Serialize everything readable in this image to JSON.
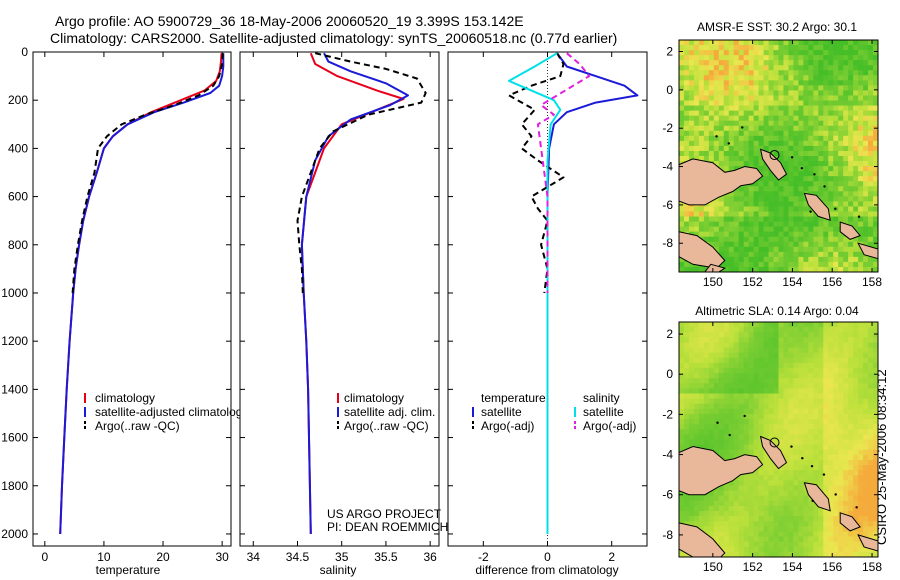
{
  "header": {
    "title_line1": "Argo profile: AO 5900729_36 18-May-2006 20060520_19 3.399S 153.142E",
    "title_line2": "Climatology: CARS2000. Satellite-adjusted climatology: synTS_20060518.nc (0.77d earlier)"
  },
  "side_credit": "CSIRO 25-May-2006 08:34:12",
  "project_note": {
    "line1": "US ARGO PROJECT",
    "line2": "PI: DEAN ROEMMICH"
  },
  "colors": {
    "climatology": "#e8001a",
    "satellite": "#1a1ad8",
    "argo": "#000000",
    "sal_satellite": "#00e0e8",
    "sal_argo": "#e020e0",
    "land": "#e9b89a"
  },
  "chart_data": [
    {
      "id": "temperature",
      "type": "line",
      "xlabel": "temperature",
      "ylabel": "depth",
      "xlim": [
        -2,
        31.5
      ],
      "ylim": [
        2050,
        0
      ],
      "xticks": [
        0,
        10,
        20,
        30
      ],
      "yticks": [
        0,
        200,
        400,
        600,
        800,
        1000,
        1200,
        1400,
        1600,
        1800,
        2000
      ],
      "legend": [
        "climatology",
        "satellite-adjusted climatology",
        "Argo(..raw -QC)"
      ],
      "series": [
        {
          "name": "climatology",
          "color": "climatology",
          "dash": false,
          "points": [
            [
              29.9,
              5
            ],
            [
              29.8,
              40
            ],
            [
              29.6,
              80
            ],
            [
              29.0,
              120
            ],
            [
              27.0,
              160
            ],
            [
              23.0,
              200
            ],
            [
              18.0,
              250
            ],
            [
              14.0,
              300
            ],
            [
              11.5,
              350
            ],
            [
              10.0,
              400
            ],
            [
              8.8,
              500
            ],
            [
              7.5,
              600
            ],
            [
              6.5,
              700
            ],
            [
              5.8,
              800
            ],
            [
              5.2,
              900
            ],
            [
              4.8,
              1000
            ],
            [
              4.2,
              1200
            ],
            [
              3.7,
              1400
            ],
            [
              3.3,
              1600
            ],
            [
              2.9,
              1800
            ],
            [
              2.6,
              2000
            ]
          ]
        },
        {
          "name": "satellite-adjusted climatology",
          "color": "satellite",
          "dash": false,
          "points": [
            [
              30.2,
              5
            ],
            [
              30.2,
              60
            ],
            [
              30.0,
              100
            ],
            [
              29.5,
              140
            ],
            [
              28.0,
              170
            ],
            [
              23.5,
              210
            ],
            [
              18.5,
              250
            ],
            [
              14.0,
              300
            ],
            [
              11.5,
              350
            ],
            [
              10.0,
              400
            ],
            [
              8.8,
              500
            ],
            [
              7.5,
              600
            ],
            [
              6.5,
              700
            ],
            [
              5.8,
              800
            ],
            [
              5.2,
              900
            ],
            [
              4.8,
              1000
            ],
            [
              4.2,
              1200
            ],
            [
              3.7,
              1400
            ],
            [
              3.3,
              1600
            ],
            [
              2.9,
              1800
            ],
            [
              2.6,
              2000
            ]
          ]
        },
        {
          "name": "Argo(..raw -QC)",
          "color": "argo",
          "dash": true,
          "points": [
            [
              30.1,
              5
            ],
            [
              30.0,
              50
            ],
            [
              29.5,
              100
            ],
            [
              28.5,
              140
            ],
            [
              26.0,
              180
            ],
            [
              22.0,
              220
            ],
            [
              17.0,
              260
            ],
            [
              13.0,
              300
            ],
            [
              10.5,
              350
            ],
            [
              9.0,
              400
            ],
            [
              8.4,
              500
            ],
            [
              7.2,
              600
            ],
            [
              6.3,
              700
            ],
            [
              5.6,
              800
            ],
            [
              5.0,
              900
            ],
            [
              4.7,
              1000
            ]
          ]
        }
      ]
    },
    {
      "id": "salinity",
      "type": "line",
      "xlabel": "salinity",
      "ylabel": "",
      "xlim": [
        33.85,
        36.1
      ],
      "ylim": [
        2050,
        0
      ],
      "xticks": [
        34,
        34.5,
        35,
        35.5,
        36
      ],
      "legend": [
        "climatology",
        "satellite adj. clim.",
        "Argo(..raw -QC)"
      ],
      "series": [
        {
          "name": "climatology",
          "color": "climatology",
          "dash": false,
          "points": [
            [
              34.65,
              5
            ],
            [
              34.7,
              50
            ],
            [
              34.95,
              100
            ],
            [
              35.4,
              160
            ],
            [
              35.7,
              195
            ],
            [
              35.4,
              240
            ],
            [
              35.0,
              300
            ],
            [
              34.8,
              400
            ],
            [
              34.7,
              500
            ],
            [
              34.6,
              600
            ],
            [
              34.55,
              800
            ],
            [
              34.57,
              1000
            ],
            [
              34.6,
              1200
            ],
            [
              34.62,
              1400
            ],
            [
              34.63,
              1600
            ],
            [
              34.64,
              1800
            ],
            [
              34.65,
              2000
            ]
          ]
        },
        {
          "name": "satellite adj. clim.",
          "color": "satellite",
          "dash": false,
          "points": [
            [
              34.8,
              5
            ],
            [
              34.85,
              40
            ],
            [
              35.1,
              80
            ],
            [
              35.5,
              130
            ],
            [
              35.75,
              180
            ],
            [
              35.55,
              220
            ],
            [
              35.1,
              280
            ],
            [
              34.85,
              350
            ],
            [
              34.7,
              450
            ],
            [
              34.6,
              600
            ],
            [
              34.55,
              800
            ],
            [
              34.57,
              1000
            ],
            [
              34.6,
              1200
            ],
            [
              34.62,
              1400
            ],
            [
              34.63,
              1600
            ],
            [
              34.64,
              1800
            ],
            [
              34.65,
              2000
            ]
          ]
        },
        {
          "name": "Argo(..raw -QC)",
          "color": "argo",
          "dash": true,
          "points": [
            [
              34.7,
              5
            ],
            [
              35.1,
              40
            ],
            [
              35.5,
              70
            ],
            [
              35.85,
              110
            ],
            [
              35.95,
              170
            ],
            [
              35.9,
              210
            ],
            [
              35.3,
              260
            ],
            [
              34.9,
              330
            ],
            [
              34.75,
              400
            ],
            [
              34.65,
              500
            ],
            [
              34.55,
              600
            ],
            [
              34.5,
              700
            ],
            [
              34.52,
              800
            ],
            [
              34.55,
              900
            ],
            [
              34.56,
              1000
            ]
          ]
        }
      ]
    },
    {
      "id": "difference",
      "type": "line",
      "xlabel": "difference from climatology",
      "ylabel": "",
      "xlim": [
        -3.1,
        3.1
      ],
      "ylim": [
        2050,
        0
      ],
      "xticks": [
        -2,
        0,
        2
      ],
      "legend_headers": [
        "temperature",
        "salinity"
      ],
      "legend": [
        "satellite",
        "Argo(-adj)",
        "satellite",
        "Argo(-adj)"
      ],
      "series": [
        {
          "name": "temperature satellite",
          "color": "satellite",
          "dash": false,
          "points": [
            [
              0.3,
              5
            ],
            [
              0.6,
              60
            ],
            [
              1.5,
              100
            ],
            [
              2.4,
              140
            ],
            [
              2.8,
              180
            ],
            [
              1.5,
              210
            ],
            [
              0.6,
              250
            ],
            [
              0.2,
              300
            ],
            [
              0.05,
              400
            ],
            [
              0,
              600
            ],
            [
              0,
              1000
            ],
            [
              0,
              2000
            ]
          ]
        },
        {
          "name": "temperature Argo(-adj)",
          "color": "argo",
          "dash": true,
          "points": [
            [
              0.3,
              5
            ],
            [
              0.5,
              50
            ],
            [
              0.4,
              100
            ],
            [
              -0.5,
              140
            ],
            [
              -1.2,
              180
            ],
            [
              -0.4,
              240
            ],
            [
              -0.8,
              300
            ],
            [
              -0.5,
              350
            ],
            [
              -0.8,
              400
            ],
            [
              -0.3,
              450
            ],
            [
              0.5,
              520
            ],
            [
              -0.5,
              600
            ],
            [
              -0.3,
              650
            ],
            [
              0,
              700
            ],
            [
              -0.2,
              800
            ],
            [
              0,
              900
            ],
            [
              -0.1,
              1000
            ]
          ]
        },
        {
          "name": "salinity satellite",
          "color": "sal_satellite",
          "dash": false,
          "points": [
            [
              0.3,
              5
            ],
            [
              -0.4,
              60
            ],
            [
              -1.2,
              120
            ],
            [
              -0.5,
              160
            ],
            [
              0.2,
              200
            ],
            [
              0.4,
              240
            ],
            [
              0.1,
              300
            ],
            [
              0,
              450
            ],
            [
              0,
              600
            ],
            [
              0,
              1000
            ],
            [
              0,
              2000
            ]
          ]
        },
        {
          "name": "salinity Argo(-adj)",
          "color": "sal_argo",
          "dash": true,
          "points": [
            [
              0.6,
              5
            ],
            [
              1.0,
              50
            ],
            [
              1.3,
              100
            ],
            [
              0.8,
              140
            ],
            [
              0.3,
              180
            ],
            [
              -0.2,
              220
            ],
            [
              0.2,
              260
            ],
            [
              -0.3,
              300
            ],
            [
              -0.2,
              400
            ],
            [
              0,
              600
            ],
            [
              0,
              800
            ],
            [
              0,
              1000
            ]
          ]
        }
      ]
    },
    {
      "id": "amsr_sst",
      "type": "heatmap",
      "title": "AMSR-E SST: 30.2  Argo: 30.1",
      "xlim": [
        148.3,
        158.3
      ],
      "ylim": [
        -9.5,
        2.6
      ],
      "xticks": [
        150,
        152,
        154,
        156,
        158
      ],
      "yticks": [
        -8,
        -6,
        -4,
        -2,
        0,
        2
      ],
      "marker": [
        153.1,
        -3.4
      ]
    },
    {
      "id": "altimetric_sla",
      "type": "heatmap",
      "title": "Altimetric SLA: 0.14  Argo: 0.04",
      "xlim": [
        148.3,
        158.3
      ],
      "ylim": [
        -9.1,
        2.6
      ],
      "xticks": [
        150,
        152,
        154,
        156,
        158
      ],
      "yticks": [
        -8,
        -6,
        -4,
        -2,
        0,
        2
      ],
      "marker": [
        153.1,
        -3.4
      ]
    }
  ]
}
